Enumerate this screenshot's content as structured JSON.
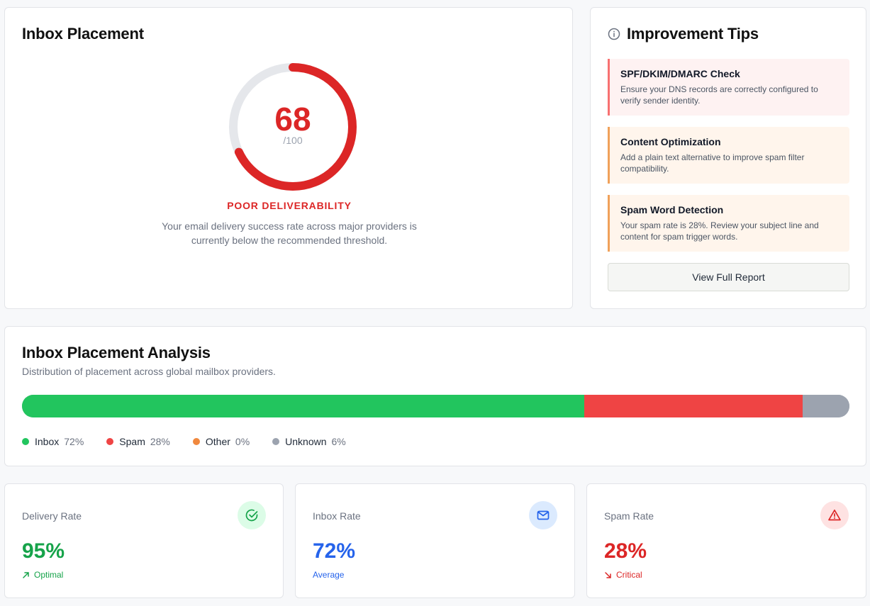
{
  "placement": {
    "title": "Inbox Placement",
    "score": 68,
    "score_text": "68",
    "score_max": "/100",
    "status": "POOR DELIVERABILITY",
    "description": "Your email delivery success rate across major providers is currently below the recommended threshold.",
    "gauge_color": "#dc2626",
    "track_color": "#e5e7eb",
    "info_icon": "info-icon"
  },
  "tips": {
    "title": "Improvement Tips",
    "icon": "info-circle-icon",
    "items": [
      {
        "title": "SPF/DKIM/DMARC Check",
        "body": "Ensure your DNS records are correctly configured to verify sender identity.",
        "accent": "#f87171",
        "bg": "#fef2f2"
      },
      {
        "title": "Content Optimization",
        "body": "Add a plain text alternative to improve spam filter compatibility.",
        "accent": "#f0a15a",
        "bg": "#fff5ec"
      },
      {
        "title": "Spam Word Detection",
        "body": "Your spam rate is 28%. Review your subject line and content for spam trigger words.",
        "accent": "#f0a15a",
        "bg": "#fff5ec"
      }
    ],
    "report_button": "View Full Report"
  },
  "analysis": {
    "title": "Inbox Placement Analysis",
    "subtitle": "Distribution of placement across global mailbox providers.",
    "segments": [
      {
        "name": "Inbox",
        "value": 72,
        "label": "72%",
        "color": "#22c55e"
      },
      {
        "name": "Spam",
        "value": 28,
        "label": "28%",
        "color": "#ef4444"
      },
      {
        "name": "Other",
        "value": 0,
        "label": "0%",
        "color": "#f0883e"
      },
      {
        "name": "Unknown",
        "value": 6,
        "label": "6%",
        "color": "#9ca3af"
      }
    ]
  },
  "metrics": {
    "delivery": {
      "label": "Delivery Rate",
      "value": "95%",
      "note": "Optimal",
      "color": "#16a34a",
      "icon_bg": "#dcfce7",
      "icon": "check-circle-icon",
      "trend_icon": "arrow-up-right-icon"
    },
    "inbox": {
      "label": "Inbox Rate",
      "value": "72%",
      "note": "Average",
      "color": "#2563eb",
      "icon_bg": "#dbeafe",
      "icon": "mail-icon"
    },
    "spam": {
      "label": "Spam Rate",
      "value": "28%",
      "note": "Critical",
      "color": "#dc2626",
      "icon_bg": "#fee2e2",
      "icon": "alert-triangle-icon",
      "trend_icon": "arrow-down-right-icon"
    }
  }
}
